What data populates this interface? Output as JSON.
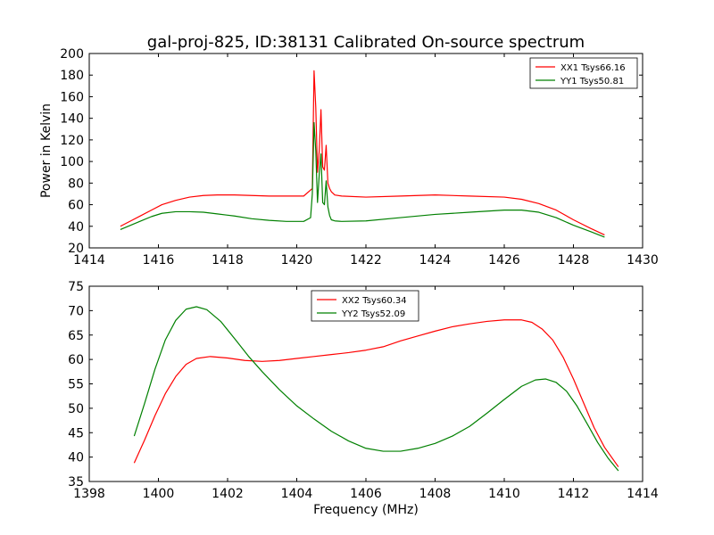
{
  "figure": {
    "title": "gal-proj-825, ID:38131 Calibrated On-source spectrum"
  },
  "chart_data": [
    {
      "type": "line",
      "title": "gal-proj-825, ID:38131 Calibrated On-source spectrum",
      "xlabel": "",
      "ylabel": "Power in Kelvin",
      "xlim": [
        1414,
        1430
      ],
      "ylim": [
        20,
        200
      ],
      "xticks": [
        1414,
        1416,
        1418,
        1420,
        1422,
        1424,
        1426,
        1428,
        1430
      ],
      "yticks": [
        20,
        40,
        60,
        80,
        100,
        120,
        140,
        160,
        180,
        200
      ],
      "grid": false,
      "legend_position": "top-right",
      "series": [
        {
          "name": "XX1 Tsys66.16",
          "color": "#ff0000",
          "x": [
            1414.9,
            1415.2,
            1415.5,
            1415.8,
            1416.1,
            1416.5,
            1416.9,
            1417.3,
            1417.7,
            1418.2,
            1418.7,
            1419.2,
            1419.7,
            1420.2,
            1420.45,
            1420.5,
            1420.55,
            1420.6,
            1420.65,
            1420.7,
            1420.75,
            1420.8,
            1420.85,
            1420.9,
            1420.95,
            1421.0,
            1421.1,
            1421.3,
            1422.0,
            1423.0,
            1424.0,
            1425.0,
            1426.0,
            1426.5,
            1427.0,
            1427.5,
            1428.0,
            1428.5,
            1428.9
          ],
          "values": [
            40,
            45,
            50,
            55,
            60,
            64,
            67,
            68.5,
            69,
            69,
            68.5,
            68,
            68,
            68,
            75,
            184,
            150,
            90,
            110,
            148,
            95,
            92,
            115,
            80,
            75,
            72,
            69,
            68,
            67,
            68,
            69,
            68,
            67,
            65,
            61,
            55,
            46,
            38,
            32
          ]
        },
        {
          "name": "YY1 Tsys50.81",
          "color": "#008000",
          "x": [
            1414.9,
            1415.2,
            1415.5,
            1415.8,
            1416.1,
            1416.5,
            1416.9,
            1417.3,
            1417.7,
            1418.2,
            1418.7,
            1419.2,
            1419.7,
            1420.2,
            1420.4,
            1420.45,
            1420.5,
            1420.55,
            1420.6,
            1420.65,
            1420.7,
            1420.75,
            1420.8,
            1420.85,
            1420.9,
            1420.95,
            1421.0,
            1421.1,
            1421.3,
            1422.0,
            1423.0,
            1424.0,
            1425.0,
            1426.0,
            1426.5,
            1427.0,
            1427.5,
            1428.0,
            1428.5,
            1428.9
          ],
          "values": [
            37,
            41,
            45,
            49,
            52,
            53.5,
            53.5,
            53,
            51.5,
            49.5,
            47,
            45.5,
            44.5,
            44.5,
            48,
            70,
            136,
            110,
            62,
            88,
            107,
            62,
            60,
            82,
            58,
            50,
            46,
            45,
            44.5,
            45,
            48,
            51,
            53,
            55,
            55,
            53,
            48,
            41,
            35,
            30
          ]
        }
      ]
    },
    {
      "type": "line",
      "title": "",
      "xlabel": "Frequency (MHz)",
      "ylabel": "",
      "xlim": [
        1398,
        1414
      ],
      "ylim": [
        35,
        75
      ],
      "xticks": [
        1398,
        1400,
        1402,
        1404,
        1406,
        1408,
        1410,
        1412,
        1414
      ],
      "yticks": [
        35,
        40,
        45,
        50,
        55,
        60,
        65,
        70,
        75
      ],
      "grid": false,
      "legend_position": "top-center",
      "series": [
        {
          "name": "XX2 Tsys60.34",
          "color": "#ff0000",
          "x": [
            1399.3,
            1399.6,
            1399.9,
            1400.2,
            1400.5,
            1400.8,
            1401.1,
            1401.5,
            1402.0,
            1402.5,
            1403.0,
            1403.5,
            1404.0,
            1404.5,
            1405.0,
            1405.5,
            1406.0,
            1406.5,
            1407.0,
            1407.5,
            1408.0,
            1408.5,
            1409.0,
            1409.5,
            1410.0,
            1410.5,
            1410.8,
            1411.1,
            1411.4,
            1411.7,
            1412.0,
            1412.3,
            1412.6,
            1412.9,
            1413.3
          ],
          "values": [
            38.8,
            43.5,
            48.5,
            53,
            56.5,
            59,
            60.2,
            60.6,
            60.3,
            59.8,
            59.6,
            59.8,
            60.2,
            60.6,
            61,
            61.4,
            61.9,
            62.6,
            63.8,
            64.8,
            65.8,
            66.7,
            67.3,
            67.8,
            68.1,
            68.1,
            67.6,
            66.2,
            64,
            60.5,
            56,
            51,
            46,
            42,
            38
          ]
        },
        {
          "name": "YY2 Tsys52.09",
          "color": "#008000",
          "x": [
            1399.3,
            1399.6,
            1399.9,
            1400.2,
            1400.5,
            1400.8,
            1401.1,
            1401.4,
            1401.8,
            1402.2,
            1402.6,
            1403.0,
            1403.5,
            1404.0,
            1404.5,
            1405.0,
            1405.5,
            1406.0,
            1406.5,
            1407.0,
            1407.5,
            1408.0,
            1408.5,
            1409.0,
            1409.5,
            1410.0,
            1410.5,
            1410.9,
            1411.2,
            1411.5,
            1411.8,
            1412.1,
            1412.4,
            1412.7,
            1413.0,
            1413.3
          ],
          "values": [
            44.3,
            51,
            58,
            64,
            68,
            70.3,
            70.8,
            70.2,
            67.8,
            64.3,
            60.7,
            57.5,
            53.8,
            50.5,
            47.8,
            45.3,
            43.3,
            41.8,
            41.2,
            41.2,
            41.8,
            42.8,
            44.3,
            46.3,
            49,
            51.8,
            54.5,
            55.8,
            56,
            55.3,
            53.5,
            50.5,
            46.8,
            43,
            39.8,
            37.2
          ]
        }
      ]
    }
  ]
}
